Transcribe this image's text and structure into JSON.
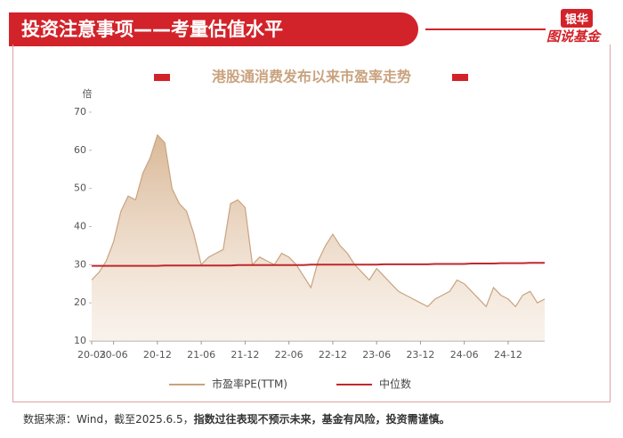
{
  "header": {
    "title": "投资注意事项——考量估值水平",
    "logo_top": "银华",
    "logo_bottom": "图说基金"
  },
  "chart_data": {
    "type": "area",
    "title": "港股通消费发布以来市盈率走势",
    "y_label": "倍",
    "x": [
      "20-03",
      null,
      null,
      "20-06",
      null,
      null,
      null,
      null,
      null,
      "20-12",
      null,
      null,
      null,
      null,
      null,
      "21-06",
      null,
      null,
      null,
      null,
      null,
      "21-12",
      null,
      null,
      null,
      null,
      null,
      "22-06",
      null,
      null,
      null,
      null,
      null,
      "22-12",
      null,
      null,
      null,
      null,
      null,
      "23-06",
      null,
      null,
      null,
      null,
      null,
      "23-12",
      null,
      null,
      null,
      null,
      null,
      "24-06",
      null,
      null,
      null,
      null,
      null,
      "24-12",
      null,
      null,
      null,
      null,
      null
    ],
    "series": [
      {
        "name": "市盈率PE(TTM)",
        "color": "#c9a37f",
        "values": [
          26,
          28,
          31,
          36,
          44,
          48,
          47,
          54,
          58,
          64,
          62,
          50,
          46,
          44,
          38,
          30,
          32,
          33,
          34,
          46,
          47,
          45,
          30,
          32,
          31,
          30,
          33,
          32,
          30,
          27,
          24,
          31,
          35,
          38,
          35,
          33,
          30,
          28,
          26,
          29,
          27,
          25,
          23,
          22,
          21,
          20,
          19,
          21,
          22,
          23,
          26,
          25,
          23,
          21,
          19,
          24,
          22,
          21,
          19,
          22,
          23,
          20,
          21
        ]
      },
      {
        "name": "中位数",
        "color": "#c0282d",
        "type": "line",
        "values": [
          29.7,
          29.7,
          29.7,
          29.7,
          29.7,
          29.7,
          29.7,
          29.7,
          29.7,
          29.7,
          29.8,
          29.8,
          29.8,
          29.8,
          29.8,
          29.8,
          29.8,
          29.8,
          29.8,
          29.8,
          29.9,
          29.9,
          29.9,
          29.9,
          29.9,
          29.9,
          29.9,
          29.9,
          29.9,
          29.9,
          30,
          30,
          30,
          30,
          30,
          30,
          30,
          30,
          30,
          30,
          30.1,
          30.1,
          30.1,
          30.1,
          30.1,
          30.1,
          30.1,
          30.2,
          30.2,
          30.2,
          30.2,
          30.2,
          30.3,
          30.3,
          30.3,
          30.3,
          30.4,
          30.4,
          30.4,
          30.4,
          30.5,
          30.5,
          30.5
        ]
      }
    ],
    "ylim": [
      10,
      70
    ],
    "yticks": [
      10,
      20,
      30,
      40,
      50,
      60,
      70
    ]
  },
  "footer": {
    "source": "数据来源：Wind，截至2025.6.5，",
    "disclaimer": "指数过往表现不预示未来，基金有风险，投资需谨慎。"
  }
}
